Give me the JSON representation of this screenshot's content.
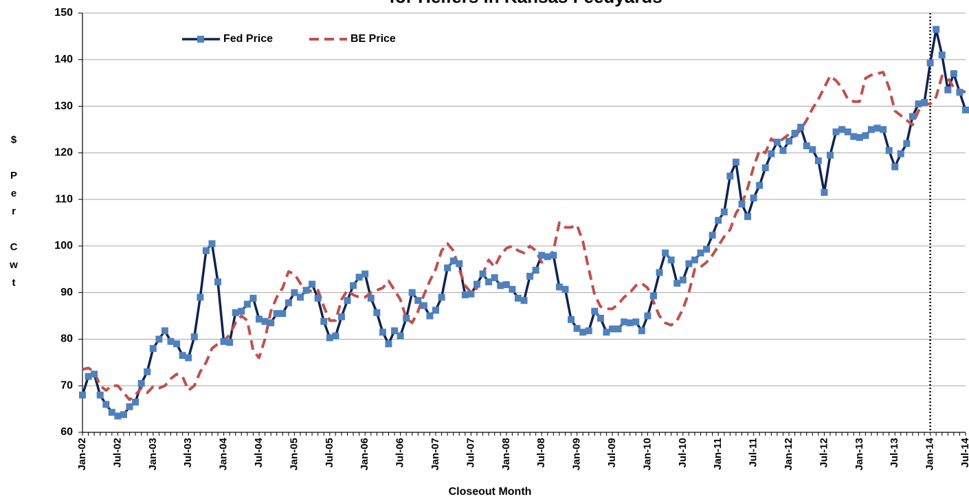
{
  "chart_data": {
    "type": "line",
    "title": "for Heifers in Kansas Feedyards",
    "x_label": "Closeout Month",
    "y_label": "$ Per Cwt",
    "ylim": [
      60,
      150
    ],
    "yticks": [
      60,
      70,
      80,
      90,
      100,
      110,
      120,
      130,
      140,
      150
    ],
    "grid": true,
    "legend": "top-left",
    "vline_at": "Jan-14",
    "categories": [
      "Jan-02",
      null,
      null,
      null,
      null,
      null,
      "Jul-02",
      null,
      null,
      null,
      null,
      null,
      "Jan-03",
      null,
      null,
      null,
      null,
      null,
      "Jul-03",
      null,
      null,
      null,
      null,
      null,
      "Jan-04",
      null,
      null,
      null,
      null,
      null,
      "Jul-04",
      null,
      null,
      null,
      null,
      null,
      "Jan-05",
      null,
      null,
      null,
      null,
      null,
      "Jul-05",
      null,
      null,
      null,
      null,
      null,
      "Jan-06",
      null,
      null,
      null,
      null,
      null,
      "Jul-06",
      null,
      null,
      null,
      null,
      null,
      "Jan-07",
      null,
      null,
      null,
      null,
      null,
      "Jul-07",
      null,
      null,
      null,
      null,
      null,
      "Jan-08",
      null,
      null,
      null,
      null,
      null,
      "Jul-08",
      null,
      null,
      null,
      null,
      null,
      "Jan-09",
      null,
      null,
      null,
      null,
      null,
      "Jul-09",
      null,
      null,
      null,
      null,
      null,
      "Jan-10",
      null,
      null,
      null,
      null,
      null,
      "Jul-10",
      null,
      null,
      null,
      null,
      null,
      "Jan-11",
      null,
      null,
      null,
      null,
      null,
      "Jul-11",
      null,
      null,
      null,
      null,
      null,
      "Jan-12",
      null,
      null,
      null,
      null,
      null,
      "Jul-12",
      null,
      null,
      null,
      null,
      null,
      "Jan-13",
      null,
      null,
      null,
      null,
      null,
      "Jul-13",
      null,
      null,
      null,
      null,
      null,
      "Jan-14",
      null,
      null,
      null,
      null,
      null,
      "Jul-14"
    ],
    "series": [
      {
        "name": "Fed Price",
        "color": "#0f2352",
        "marker_color": "#4f81bd",
        "marker": "square",
        "dashed": false,
        "values": [
          68,
          72,
          72.5,
          68,
          66,
          64.3,
          63.5,
          63.8,
          65.5,
          66.5,
          70.5,
          73,
          78,
          80,
          81.8,
          79.5,
          79,
          76.5,
          76,
          80.5,
          89,
          99,
          100.5,
          92.3,
          79.5,
          79.3,
          85.7,
          86,
          87.5,
          88.8,
          84.3,
          83.8,
          83.5,
          85.5,
          85.5,
          87.8,
          90,
          89,
          90.5,
          91.8,
          88.8,
          83.8,
          80.3,
          80.7,
          84.8,
          88.3,
          91.5,
          93.3,
          94,
          88.8,
          85.7,
          81.5,
          79,
          81.8,
          80.7,
          84.5,
          90,
          88.3,
          87.2,
          85,
          86.2,
          89,
          95.3,
          96.8,
          96.2,
          89.5,
          89.7,
          91.8,
          94,
          92.3,
          93.2,
          91.5,
          91.7,
          90.7,
          88.8,
          88.3,
          93.5,
          94.8,
          98,
          97.7,
          98,
          91.2,
          90.7,
          84.2,
          82.3,
          81.5,
          81.8,
          86,
          84.5,
          81.5,
          82.2,
          82.2,
          83.7,
          83.5,
          83.7,
          81.8,
          85,
          89.3,
          94.3,
          98.5,
          97,
          92,
          92.7,
          96.2,
          97,
          98.5,
          99.3,
          102.3,
          105.5,
          107.3,
          115,
          118,
          109,
          106.3,
          110.3,
          113,
          116.8,
          119.8,
          122.3,
          120.5,
          122.5,
          124.2,
          125.5,
          121.5,
          120.7,
          118.3,
          111.5,
          119.5,
          124.5,
          125,
          124.5,
          123.5,
          123.3,
          123.7,
          125,
          125.3,
          125,
          120.5,
          117,
          119.8,
          122,
          127.8,
          130.5,
          130.8,
          139.3,
          146.5,
          141,
          133.5,
          137,
          133,
          129.2
        ]
      },
      {
        "name": "BE Price",
        "color": "#c0504d",
        "marker": "none",
        "dashed": true,
        "values": [
          73.5,
          73.8,
          73,
          70,
          69,
          70,
          70,
          68.5,
          67,
          68,
          69.5,
          68.5,
          69.8,
          69.5,
          70,
          71.5,
          72.5,
          72,
          69,
          70,
          73,
          75,
          78,
          79,
          79.5,
          81,
          83.5,
          85,
          84,
          77.5,
          76,
          80,
          86,
          89,
          91,
          94.5,
          94,
          92,
          90,
          90.5,
          90.5,
          87,
          84,
          84,
          88.5,
          90.5,
          89.5,
          89,
          89,
          90,
          90.5,
          91,
          92.5,
          90.5,
          88.5,
          84.5,
          83.5,
          86,
          89.5,
          92.5,
          95,
          99,
          100.5,
          99,
          95,
          91.5,
          90,
          91,
          94,
          97,
          95.5,
          98,
          99.5,
          100,
          99,
          98.5,
          100,
          99,
          96.5,
          97,
          99,
          105,
          104,
          104,
          104.5,
          101,
          95,
          89.5,
          87,
          86.5,
          86.5,
          87.5,
          89,
          90,
          91.5,
          92,
          91,
          88,
          85,
          83.5,
          83,
          84,
          86.5,
          90,
          95,
          95.5,
          96.5,
          98,
          100,
          102,
          103.5,
          107,
          109,
          112.5,
          117,
          120.5,
          120,
          123,
          122,
          123,
          124,
          123.5,
          125,
          127,
          129.5,
          131.5,
          134,
          136.5,
          135.5,
          134,
          131.5,
          131,
          131,
          136,
          136.7,
          137,
          137.3,
          134,
          129,
          128,
          127,
          126,
          129,
          130.5,
          130.5,
          132,
          136.5,
          136,
          134,
          133.5,
          133
        ]
      }
    ]
  }
}
